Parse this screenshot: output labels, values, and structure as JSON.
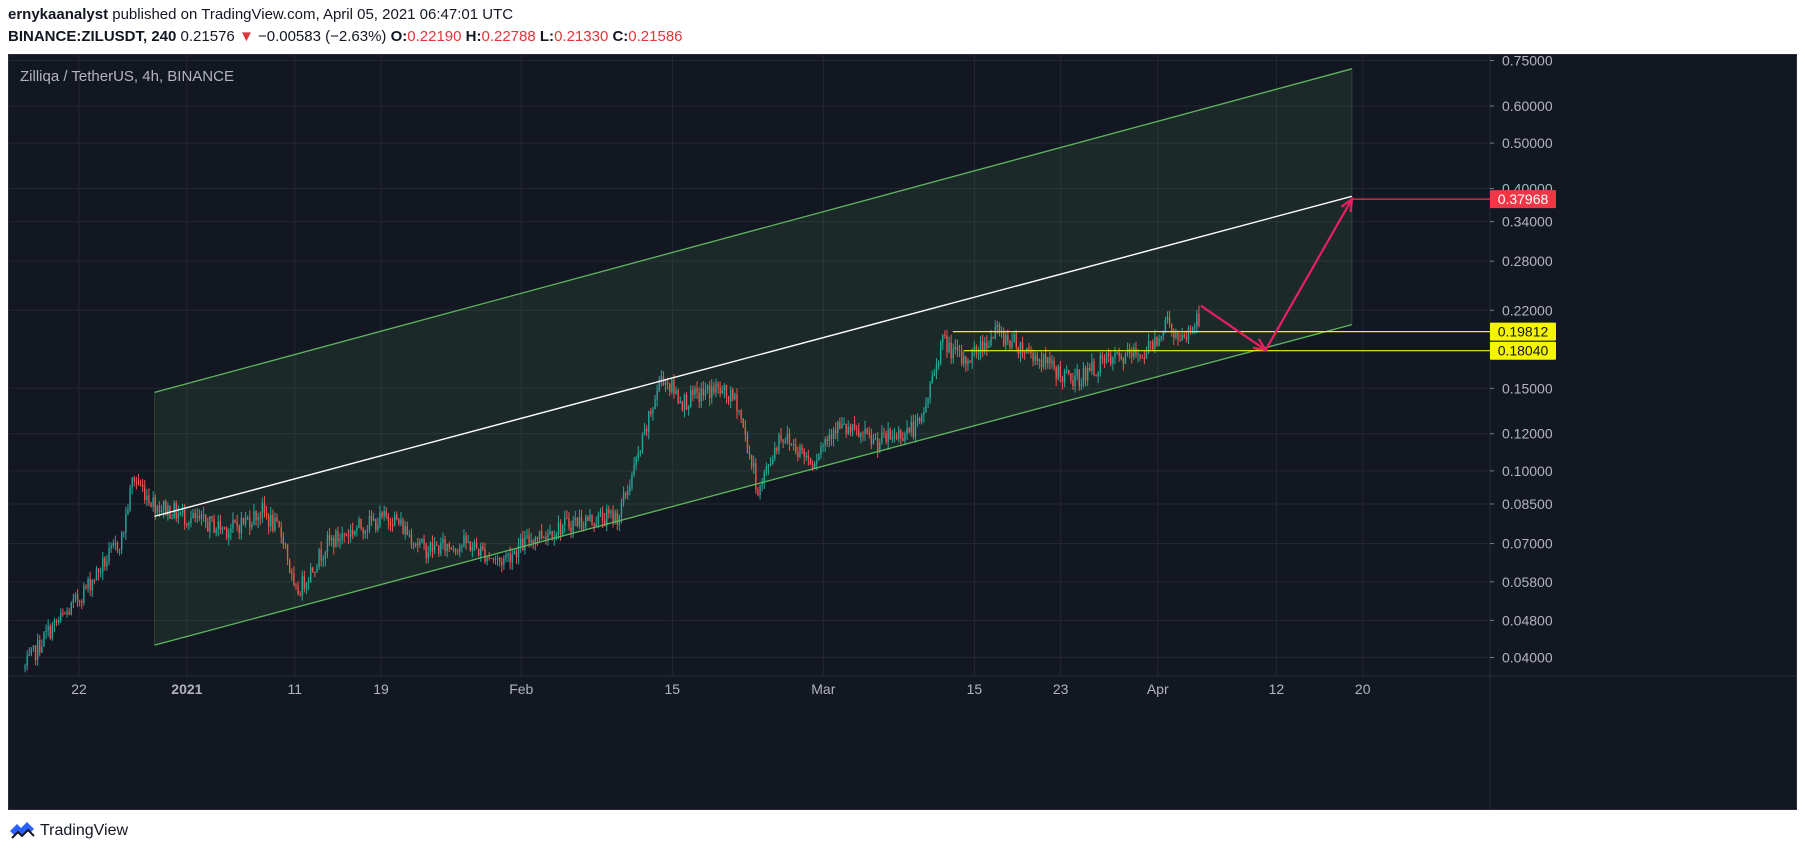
{
  "header": {
    "author": "ernykaanalyst",
    "published_text": "published on TradingView.com, April 05, 2021 06:47:01 UTC",
    "symbol": "BINANCE:ZILUSDT, 240",
    "last_price": "0.21576",
    "change": "−0.00583 (−2.63%)",
    "open_label": "O:",
    "open": "0.22190",
    "high_label": "H:",
    "high": "0.22788",
    "low_label": "L:",
    "low": "0.21330",
    "close_label": "C:",
    "close": "0.21586",
    "down_arrow_icon": "triangle-down-icon"
  },
  "pane_title": "Zilliqa / TetherUS, 4h, BINANCE",
  "footer": {
    "brand": "TradingView",
    "logo_icon": "tradingview-logo-icon"
  },
  "colors": {
    "background": "#131722",
    "grid": "#242733",
    "up": "#26a69a",
    "down": "#ef5350",
    "channel": "#5fb65f",
    "channel_fill": "rgba(76,140,76,0.16)",
    "midline": "#ffffff",
    "level": "#f5f500",
    "target": "#f23645",
    "arrow": "#e91e63"
  },
  "chart_data": {
    "type": "candlestick",
    "symbol": "ZILUSDT",
    "interval": "4h",
    "scale": "log",
    "ylim": [
      0.037,
      0.78
    ],
    "x_ticks": [
      "22",
      "2021",
      "11",
      "19",
      "Feb",
      "15",
      "Mar",
      "15",
      "23",
      "Apr",
      "12",
      "20"
    ],
    "y_ticks": [
      "0.75000",
      "0.60000",
      "0.50000",
      "0.40000",
      "0.34000",
      "0.28000",
      "0.22000",
      "0.15000",
      "0.12000",
      "0.10000",
      "0.08500",
      "0.07000",
      "0.05800",
      "0.04800",
      "0.04000"
    ],
    "price_labels": [
      {
        "value": "0.37968",
        "kind": "target"
      },
      {
        "value": "0.19812",
        "kind": "level"
      },
      {
        "value": "0.18040",
        "kind": "level"
      }
    ],
    "close_series": [
      {
        "date": "2020-12-17",
        "close": 0.038
      },
      {
        "date": "2020-12-19",
        "close": 0.045
      },
      {
        "date": "2020-12-21",
        "close": 0.05
      },
      {
        "date": "2020-12-24",
        "close": 0.062
      },
      {
        "date": "2020-12-26",
        "close": 0.072
      },
      {
        "date": "2020-12-27",
        "close": 0.097
      },
      {
        "date": "2020-12-29",
        "close": 0.085
      },
      {
        "date": "2021-01-02",
        "close": 0.078
      },
      {
        "date": "2021-01-05",
        "close": 0.075
      },
      {
        "date": "2021-01-08",
        "close": 0.082
      },
      {
        "date": "2021-01-10",
        "close": 0.072
      },
      {
        "date": "2021-01-11",
        "close": 0.054
      },
      {
        "date": "2021-01-14",
        "close": 0.07
      },
      {
        "date": "2021-01-17",
        "close": 0.076
      },
      {
        "date": "2021-01-20",
        "close": 0.08
      },
      {
        "date": "2021-01-23",
        "close": 0.068
      },
      {
        "date": "2021-01-27",
        "close": 0.07
      },
      {
        "date": "2021-01-30",
        "close": 0.064
      },
      {
        "date": "2021-02-02",
        "close": 0.072
      },
      {
        "date": "2021-02-06",
        "close": 0.078
      },
      {
        "date": "2021-02-10",
        "close": 0.08
      },
      {
        "date": "2021-02-12",
        "close": 0.11
      },
      {
        "date": "2021-02-14",
        "close": 0.16
      },
      {
        "date": "2021-02-16",
        "close": 0.14
      },
      {
        "date": "2021-02-19",
        "close": 0.15
      },
      {
        "date": "2021-02-21",
        "close": 0.14
      },
      {
        "date": "2021-02-23",
        "close": 0.09
      },
      {
        "date": "2021-02-25",
        "close": 0.12
      },
      {
        "date": "2021-02-28",
        "close": 0.105
      },
      {
        "date": "2021-03-02",
        "close": 0.125
      },
      {
        "date": "2021-03-06",
        "close": 0.115
      },
      {
        "date": "2021-03-10",
        "close": 0.125
      },
      {
        "date": "2021-03-12",
        "close": 0.19
      },
      {
        "date": "2021-03-14",
        "close": 0.17
      },
      {
        "date": "2021-03-17",
        "close": 0.198
      },
      {
        "date": "2021-03-20",
        "close": 0.18
      },
      {
        "date": "2021-03-24",
        "close": 0.155
      },
      {
        "date": "2021-03-27",
        "close": 0.17
      },
      {
        "date": "2021-03-31",
        "close": 0.18
      },
      {
        "date": "2021-04-02",
        "close": 0.21
      },
      {
        "date": "2021-04-03",
        "close": 0.185
      },
      {
        "date": "2021-04-05",
        "close": 0.21586
      }
    ],
    "drawings": {
      "channel_upper": [
        {
          "date": "2020-12-29",
          "price": 0.147
        },
        {
          "date": "2021-04-19",
          "price": 0.72
        }
      ],
      "channel_lower": [
        {
          "date": "2020-12-29",
          "price": 0.0425
        },
        {
          "date": "2021-04-19",
          "price": 0.205
        }
      ],
      "channel_mid": [
        {
          "date": "2020-12-29",
          "price": 0.08
        },
        {
          "date": "2021-04-19",
          "price": 0.385
        }
      ],
      "level_1": {
        "from": "2021-03-13",
        "to": "2021-04-20",
        "price": 0.19812
      },
      "level_2": {
        "from": "2021-03-14",
        "to": "2021-04-20",
        "price": 0.1804
      },
      "target": {
        "from": "2021-04-19",
        "to": "2021-04-20",
        "price": 0.37968
      },
      "projection_path": [
        {
          "date": "2021-04-05",
          "price": 0.225
        },
        {
          "date": "2021-04-11",
          "price": 0.181
        },
        {
          "date": "2021-04-19",
          "price": 0.37968
        }
      ]
    }
  }
}
